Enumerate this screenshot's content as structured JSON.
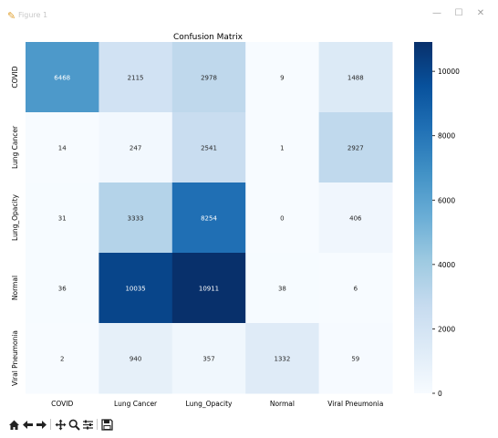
{
  "window": {
    "title": "Figure 1",
    "icons": {
      "app": "matplotlib-figure-icon",
      "minimize": "minimize-icon",
      "maximize": "maximize-icon",
      "close": "close-icon"
    }
  },
  "toolbar": {
    "buttons": [
      "home-icon",
      "back-arrow-icon",
      "forward-arrow-icon",
      "pan-icon",
      "zoom-icon",
      "configure-subplots-icon",
      "save-icon"
    ]
  },
  "chart_data": {
    "type": "heatmap",
    "title": "Confusion Matrix",
    "xlabel": "",
    "ylabel": "",
    "x_categories": [
      "COVID",
      "Lung Cancer",
      "Lung_Opacity",
      "Normal",
      "Viral Pneumonia"
    ],
    "y_categories": [
      "COVID",
      "Lung Cancer",
      "Lung_Opacity",
      "Normal",
      "Viral Pneumonia"
    ],
    "values": [
      [
        6468,
        2115,
        2978,
        9,
        1488
      ],
      [
        14,
        247,
        2541,
        1,
        2927
      ],
      [
        31,
        3333,
        8254,
        0,
        406
      ],
      [
        36,
        10035,
        10911,
        38,
        6
      ],
      [
        2,
        940,
        357,
        1332,
        59
      ]
    ],
    "colormap": "Blues",
    "colorbar": {
      "range": [
        0,
        10911
      ],
      "ticks": [
        0,
        2000,
        4000,
        6000,
        8000,
        10000
      ],
      "tick_labels": [
        "0",
        "2000",
        "4000",
        "6000",
        "8000",
        "10000"
      ]
    },
    "colors": {
      "low": "#f7fbff",
      "mid": "#6baed6",
      "high": "#08306b",
      "text_dark": "#262626",
      "text_light": "#ffffff"
    }
  }
}
